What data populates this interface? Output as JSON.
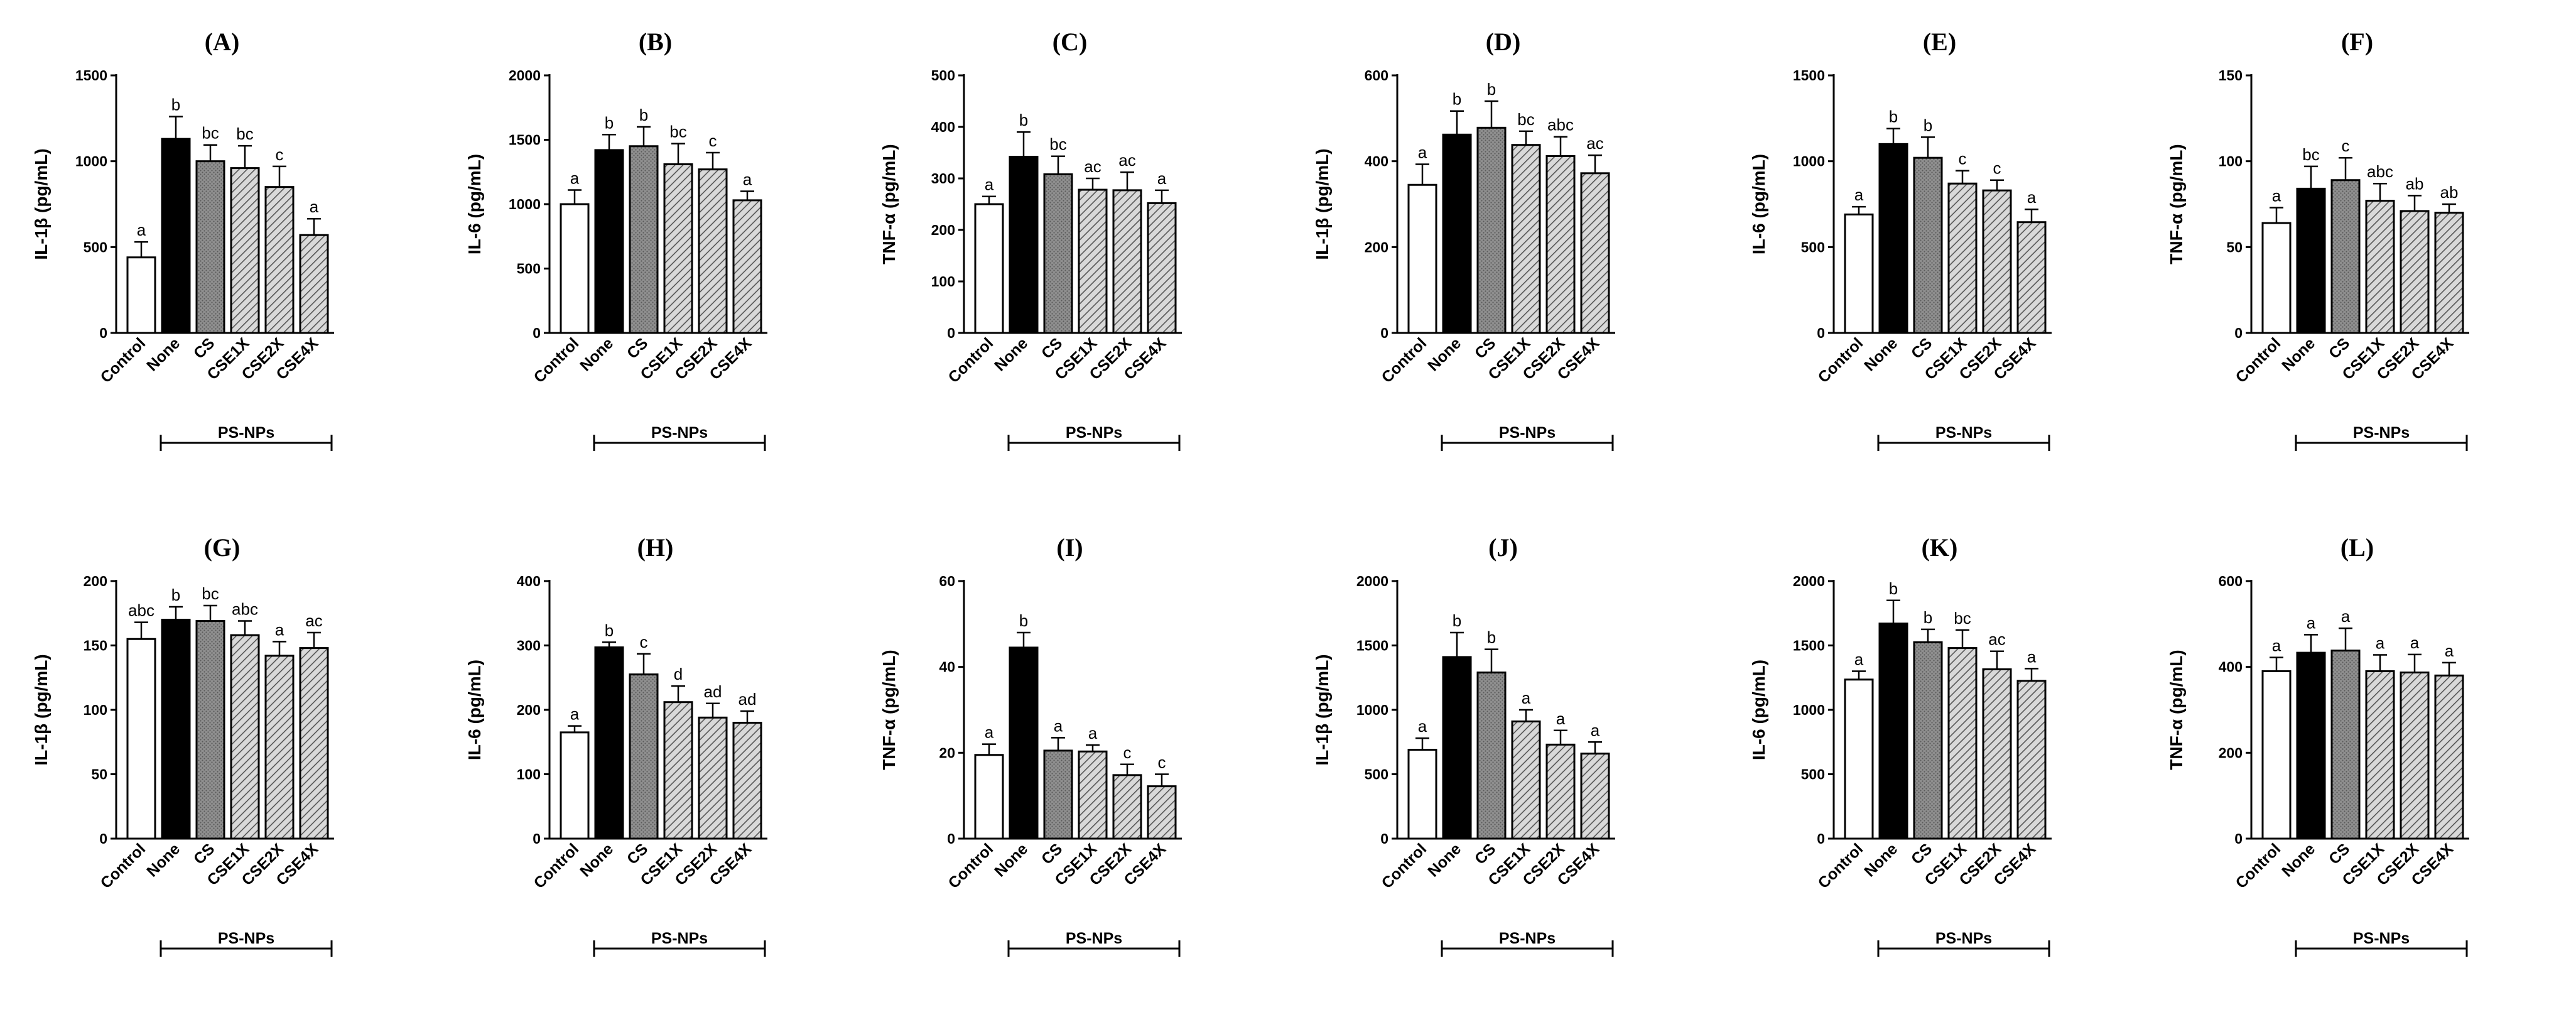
{
  "group_label": "PS-NPs",
  "categories": [
    "Control",
    "None",
    "CS",
    "CSE1X",
    "CSE2X",
    "CSE4X"
  ],
  "fill_colors": {
    "Control": "#ffffff",
    "None": "#000000",
    "CS": "#808080",
    "hatch": "#bdbdbd"
  },
  "chart_data": [
    {
      "panel": "(A)",
      "type": "bar",
      "ylabel": "IL-1β (pg/mL)",
      "ylim": [
        0,
        1500
      ],
      "yticks": [
        0,
        500,
        1000,
        1500
      ],
      "values": [
        440,
        1130,
        1000,
        960,
        850,
        570
      ],
      "errors": [
        90,
        130,
        95,
        130,
        120,
        95
      ],
      "labels": [
        "a",
        "b",
        "bc",
        "bc",
        "c",
        "a"
      ]
    },
    {
      "panel": "(B)",
      "type": "bar",
      "ylabel": "IL-6 (pg/mL)",
      "ylim": [
        0,
        2000
      ],
      "yticks": [
        0,
        500,
        1000,
        1500,
        2000
      ],
      "values": [
        1000,
        1420,
        1450,
        1310,
        1270,
        1030
      ],
      "errors": [
        110,
        120,
        150,
        160,
        130,
        70
      ],
      "labels": [
        "a",
        "b",
        "b",
        "bc",
        "c",
        "a"
      ]
    },
    {
      "panel": "(C)",
      "type": "bar",
      "ylabel": "TNF-α (pg/mL)",
      "ylim": [
        0,
        500
      ],
      "yticks": [
        0,
        100,
        200,
        300,
        400,
        500
      ],
      "values": [
        250,
        342,
        308,
        278,
        277,
        252
      ],
      "errors": [
        15,
        48,
        35,
        22,
        35,
        25
      ],
      "labels": [
        "a",
        "b",
        "bc",
        "ac",
        "ac",
        "a"
      ]
    },
    {
      "panel": "(D)",
      "type": "bar",
      "ylabel": "IL-1β (pg/mL)",
      "ylim": [
        0,
        600
      ],
      "yticks": [
        0,
        200,
        400,
        600
      ],
      "values": [
        345,
        462,
        478,
        438,
        412,
        372
      ],
      "errors": [
        48,
        55,
        62,
        32,
        45,
        42
      ],
      "labels": [
        "a",
        "b",
        "b",
        "bc",
        "abc",
        "ac"
      ]
    },
    {
      "panel": "(E)",
      "type": "bar",
      "ylabel": "IL-6 (pg/mL)",
      "ylim": [
        0,
        1500
      ],
      "yticks": [
        0,
        500,
        1000,
        1500
      ],
      "values": [
        690,
        1100,
        1020,
        870,
        830,
        645
      ],
      "errors": [
        45,
        90,
        120,
        75,
        60,
        75
      ],
      "labels": [
        "a",
        "b",
        "b",
        "c",
        "c",
        "a"
      ]
    },
    {
      "panel": "(F)",
      "type": "bar",
      "ylabel": "TNF-α (pg/mL)",
      "ylim": [
        0,
        150
      ],
      "yticks": [
        0,
        50,
        100,
        150
      ],
      "values": [
        64,
        84,
        89,
        77,
        71,
        70
      ],
      "errors": [
        9,
        13,
        13,
        10,
        9,
        5
      ],
      "labels": [
        "a",
        "bc",
        "c",
        "abc",
        "ab",
        "ab"
      ]
    },
    {
      "panel": "(G)",
      "type": "bar",
      "ylabel": "IL-1β (pg/mL)",
      "ylim": [
        0,
        200
      ],
      "yticks": [
        0,
        50,
        100,
        150,
        200
      ],
      "values": [
        155,
        170,
        169,
        158,
        142,
        148
      ],
      "errors": [
        13,
        10,
        12,
        11,
        11,
        12
      ],
      "labels": [
        "abc",
        "b",
        "bc",
        "abc",
        "a",
        "ac"
      ]
    },
    {
      "panel": "(H)",
      "type": "bar",
      "ylabel": "IL-6 (pg/mL)",
      "ylim": [
        0,
        400
      ],
      "yticks": [
        0,
        100,
        200,
        300,
        400
      ],
      "values": [
        165,
        297,
        255,
        212,
        188,
        180
      ],
      "errors": [
        10,
        8,
        32,
        25,
        22,
        18
      ],
      "labels": [
        "a",
        "b",
        "c",
        "d",
        "ad",
        "ad"
      ]
    },
    {
      "panel": "(I)",
      "type": "bar",
      "ylabel": "TNF-α (pg/mL)",
      "ylim": [
        0,
        60
      ],
      "yticks": [
        0,
        20,
        40,
        60
      ],
      "values": [
        19.5,
        44.5,
        20.5,
        20.3,
        14.8,
        12.2
      ],
      "errors": [
        2.5,
        3.5,
        3,
        1.5,
        2.5,
        2.8
      ],
      "labels": [
        "a",
        "b",
        "a",
        "a",
        "c",
        "c"
      ]
    },
    {
      "panel": "(J)",
      "type": "bar",
      "ylabel": "IL-1β (pg/mL)",
      "ylim": [
        0,
        2000
      ],
      "yticks": [
        0,
        500,
        1000,
        1500,
        2000
      ],
      "values": [
        690,
        1410,
        1290,
        910,
        730,
        660
      ],
      "errors": [
        90,
        190,
        180,
        90,
        110,
        90
      ],
      "labels": [
        "a",
        "b",
        "b",
        "a",
        "a",
        "a"
      ]
    },
    {
      "panel": "(K)",
      "type": "bar",
      "ylabel": "IL-6 (pg/mL)",
      "ylim": [
        0,
        2000
      ],
      "yticks": [
        0,
        500,
        1000,
        1500,
        2000
      ],
      "values": [
        1235,
        1670,
        1525,
        1480,
        1315,
        1225
      ],
      "errors": [
        65,
        180,
        100,
        140,
        140,
        95
      ],
      "labels": [
        "a",
        "b",
        "b",
        "bc",
        "ac",
        "a"
      ]
    },
    {
      "panel": "(L)",
      "type": "bar",
      "ylabel": "TNF-α (pg/mL)",
      "ylim": [
        0,
        600
      ],
      "yticks": [
        0,
        200,
        400,
        600
      ],
      "values": [
        390,
        433,
        438,
        390,
        387,
        380
      ],
      "errors": [
        32,
        42,
        52,
        38,
        42,
        30
      ],
      "labels": [
        "a",
        "a",
        "a",
        "a",
        "a",
        "a"
      ]
    }
  ]
}
